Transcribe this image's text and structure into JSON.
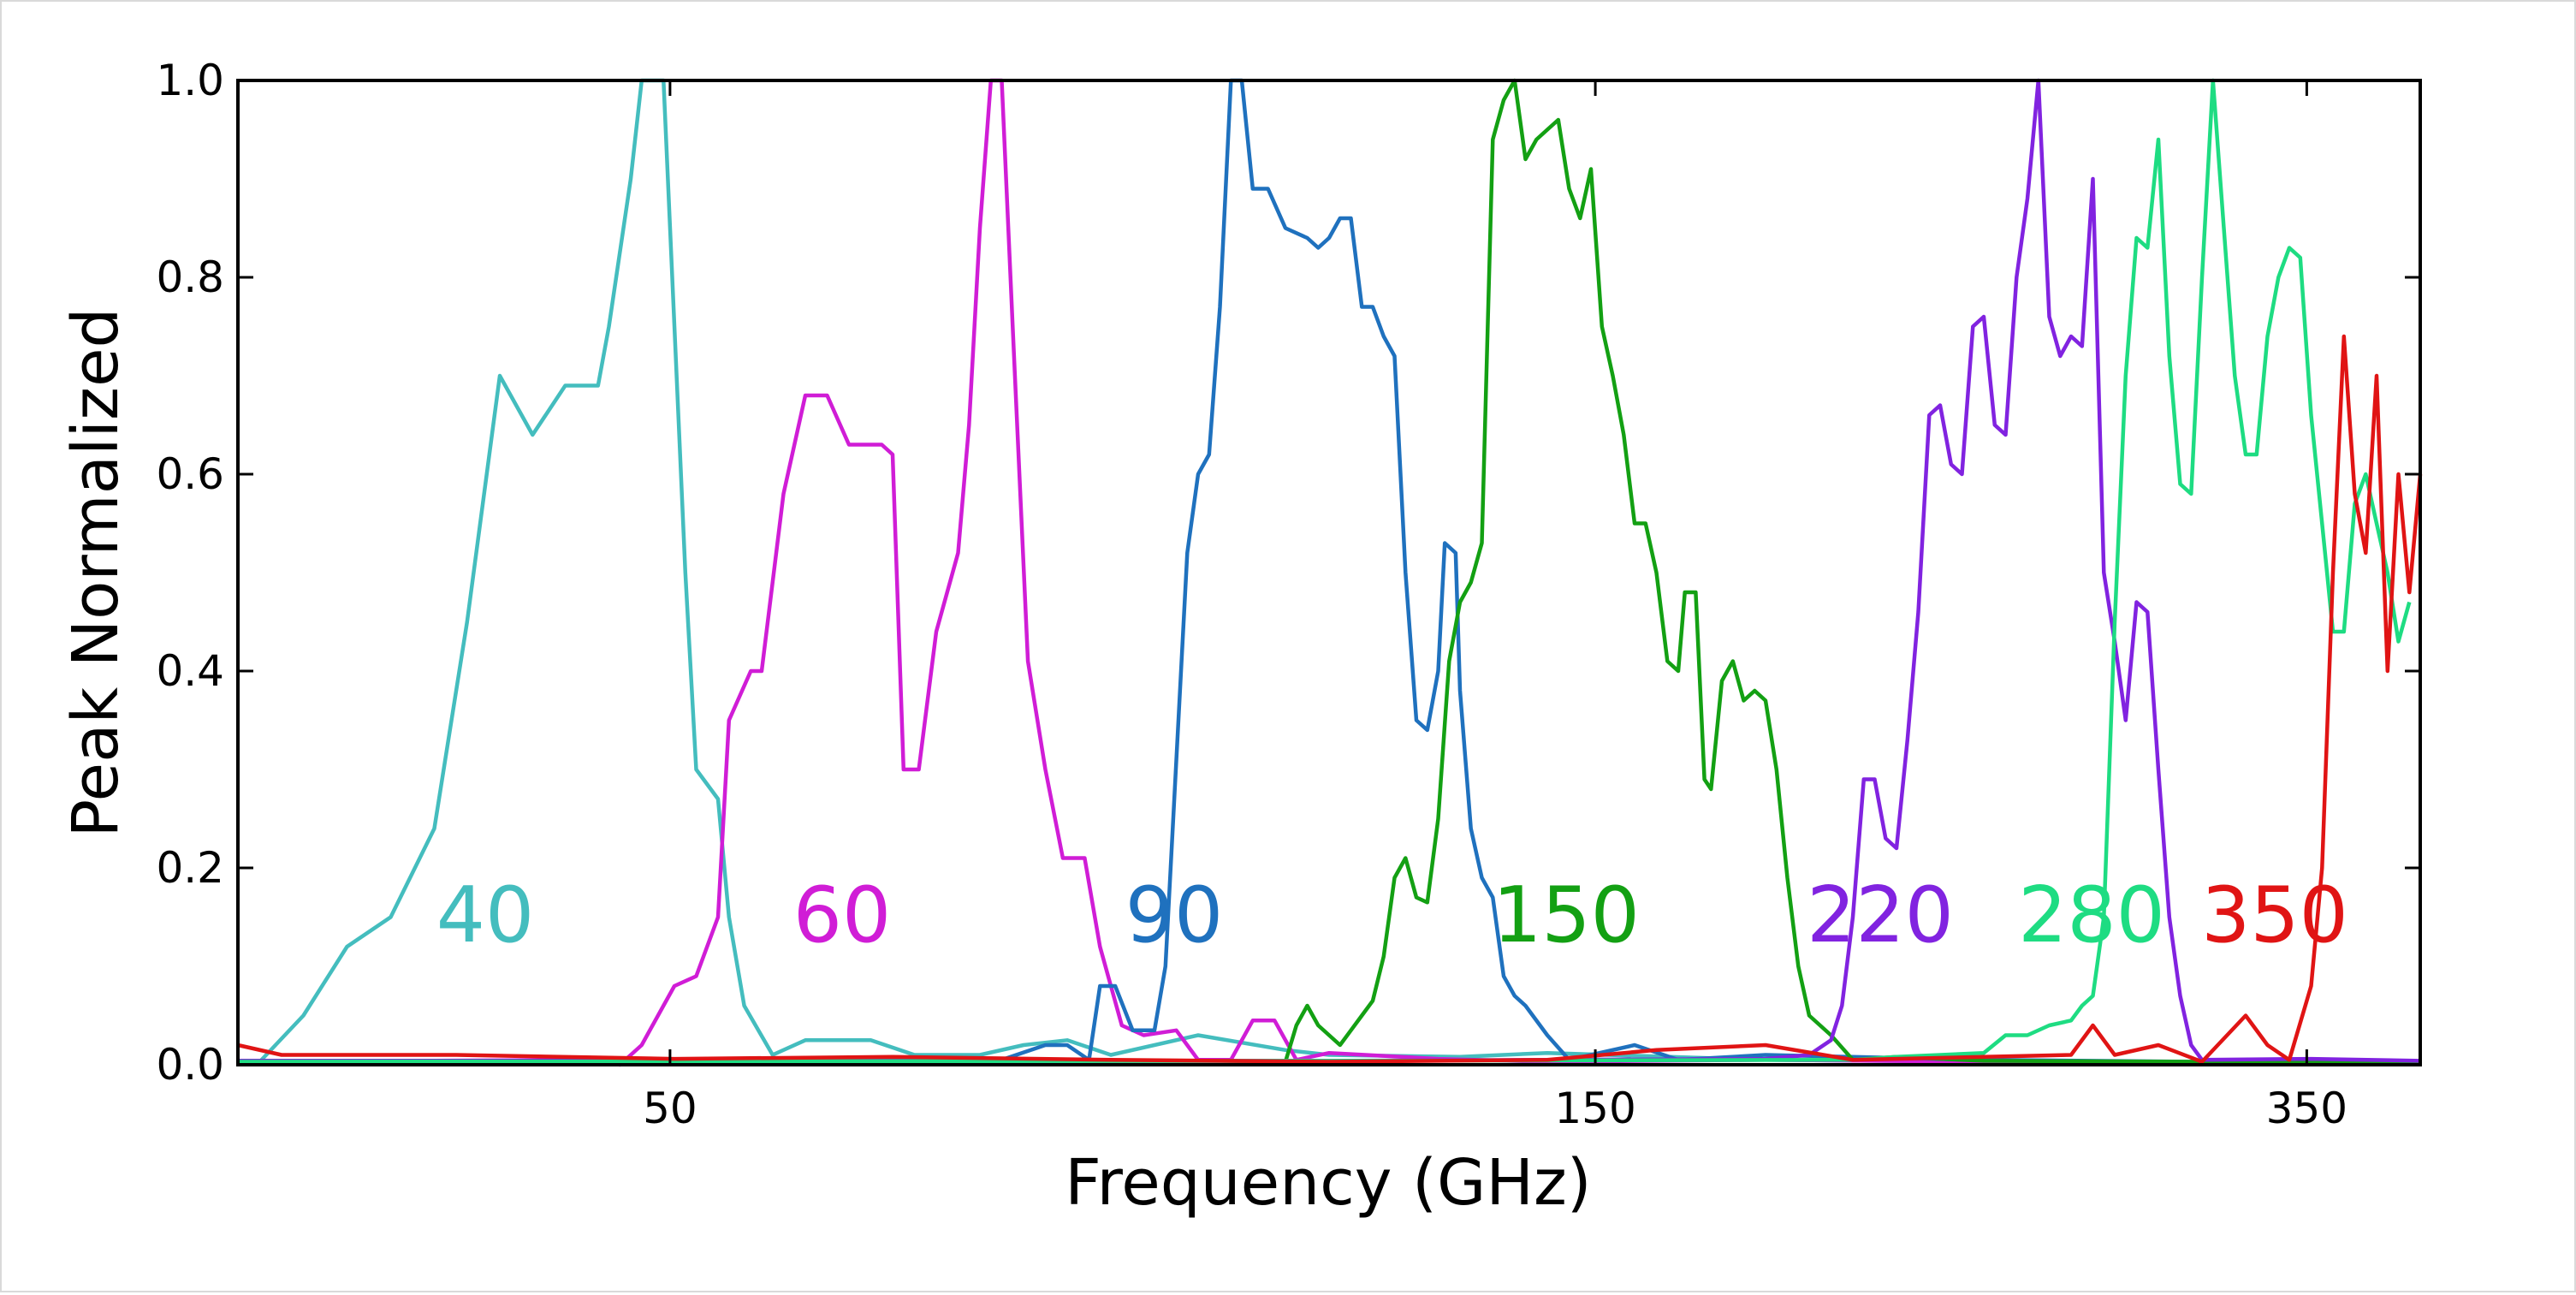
{
  "chart_data": {
    "type": "line",
    "xlabel": "Frequency (GHz)",
    "ylabel": "Peak Normalized",
    "ylim": [
      0,
      1.0
    ],
    "y_ticks": [
      "0.0",
      "0.2",
      "0.4",
      "0.6",
      "0.8",
      "1.0"
    ],
    "y_tick_values": [
      0,
      0.2,
      0.4,
      0.6,
      0.8,
      1.0
    ],
    "x_ticks": [
      "50",
      "150",
      "350"
    ],
    "grid": false,
    "legend": "none",
    "series": [
      {
        "name": "40",
        "color": "#44bdbe",
        "points": [
          [
            0.01,
            0.003
          ],
          [
            0.03,
            0.05
          ],
          [
            0.05,
            0.12
          ],
          [
            0.07,
            0.15
          ],
          [
            0.09,
            0.24
          ],
          [
            0.105,
            0.45
          ],
          [
            0.12,
            0.7
          ],
          [
            0.135,
            0.64
          ],
          [
            0.15,
            0.69
          ],
          [
            0.165,
            0.69
          ],
          [
            0.17,
            0.75
          ],
          [
            0.18,
            0.9
          ],
          [
            0.185,
            1.0
          ],
          [
            0.195,
            1.0
          ],
          [
            0.205,
            0.5
          ],
          [
            0.21,
            0.3
          ],
          [
            0.22,
            0.27
          ],
          [
            0.225,
            0.15
          ],
          [
            0.232,
            0.06
          ],
          [
            0.245,
            0.01
          ],
          [
            0.26,
            0.025
          ],
          [
            0.29,
            0.025
          ],
          [
            0.31,
            0.01
          ],
          [
            0.34,
            0.01
          ],
          [
            0.36,
            0.02
          ],
          [
            0.38,
            0.025
          ],
          [
            0.4,
            0.01
          ],
          [
            0.44,
            0.03
          ],
          [
            0.48,
            0.015
          ],
          [
            0.5,
            0.01
          ],
          [
            0.56,
            0.008
          ],
          [
            0.6,
            0.012
          ],
          [
            0.7,
            0.005
          ],
          [
            0.8,
            0.003
          ],
          [
            0.9,
            0.002
          ],
          [
            1.0,
            0.002
          ]
        ]
      },
      {
        "name": "60",
        "color": "#d01dd6",
        "points": [
          [
            0.0,
            0.003
          ],
          [
            0.16,
            0.005
          ],
          [
            0.17,
            0.003
          ],
          [
            0.175,
            0.0
          ],
          [
            0.185,
            0.02
          ],
          [
            0.19,
            0.04
          ],
          [
            0.2,
            0.08
          ],
          [
            0.21,
            0.09
          ],
          [
            0.22,
            0.15
          ],
          [
            0.225,
            0.35
          ],
          [
            0.235,
            0.4
          ],
          [
            0.24,
            0.4
          ],
          [
            0.25,
            0.58
          ],
          [
            0.26,
            0.68
          ],
          [
            0.27,
            0.68
          ],
          [
            0.28,
            0.63
          ],
          [
            0.295,
            0.63
          ],
          [
            0.3,
            0.62
          ],
          [
            0.305,
            0.3
          ],
          [
            0.312,
            0.3
          ],
          [
            0.32,
            0.44
          ],
          [
            0.33,
            0.52
          ],
          [
            0.335,
            0.65
          ],
          [
            0.34,
            0.85
          ],
          [
            0.345,
            1.0
          ],
          [
            0.35,
            1.0
          ],
          [
            0.355,
            0.75
          ],
          [
            0.362,
            0.41
          ],
          [
            0.37,
            0.3
          ],
          [
            0.378,
            0.21
          ],
          [
            0.388,
            0.21
          ],
          [
            0.395,
            0.12
          ],
          [
            0.405,
            0.04
          ],
          [
            0.415,
            0.03
          ],
          [
            0.43,
            0.035
          ],
          [
            0.44,
            0.005
          ],
          [
            0.455,
            0.005
          ],
          [
            0.465,
            0.045
          ],
          [
            0.475,
            0.045
          ],
          [
            0.485,
            0.005
          ],
          [
            0.5,
            0.012
          ],
          [
            0.55,
            0.006
          ],
          [
            0.6,
            0.003
          ],
          [
            0.7,
            0.005
          ],
          [
            0.8,
            0.003
          ],
          [
            0.9,
            0.002
          ],
          [
            1.0,
            0.003
          ]
        ]
      },
      {
        "name": "90",
        "color": "#1f71be",
        "points": [
          [
            0.0,
            0.002
          ],
          [
            0.2,
            0.003
          ],
          [
            0.34,
            0.004
          ],
          [
            0.35,
            0.005
          ],
          [
            0.37,
            0.02
          ],
          [
            0.38,
            0.02
          ],
          [
            0.39,
            0.005
          ],
          [
            0.395,
            0.08
          ],
          [
            0.402,
            0.08
          ],
          [
            0.41,
            0.035
          ],
          [
            0.42,
            0.035
          ],
          [
            0.425,
            0.1
          ],
          [
            0.435,
            0.52
          ],
          [
            0.44,
            0.6
          ],
          [
            0.445,
            0.62
          ],
          [
            0.45,
            0.77
          ],
          [
            0.455,
            1.0
          ],
          [
            0.46,
            1.0
          ],
          [
            0.465,
            0.89
          ],
          [
            0.472,
            0.89
          ],
          [
            0.48,
            0.85
          ],
          [
            0.49,
            0.84
          ],
          [
            0.495,
            0.83
          ],
          [
            0.5,
            0.84
          ],
          [
            0.505,
            0.86
          ],
          [
            0.51,
            0.86
          ],
          [
            0.515,
            0.77
          ],
          [
            0.52,
            0.77
          ],
          [
            0.525,
            0.74
          ],
          [
            0.53,
            0.72
          ],
          [
            0.535,
            0.5
          ],
          [
            0.54,
            0.35
          ],
          [
            0.545,
            0.34
          ],
          [
            0.55,
            0.4
          ],
          [
            0.553,
            0.53
          ],
          [
            0.558,
            0.52
          ],
          [
            0.56,
            0.38
          ],
          [
            0.565,
            0.24
          ],
          [
            0.57,
            0.19
          ],
          [
            0.575,
            0.17
          ],
          [
            0.58,
            0.09
          ],
          [
            0.585,
            0.07
          ],
          [
            0.59,
            0.06
          ],
          [
            0.6,
            0.03
          ],
          [
            0.61,
            0.005
          ],
          [
            0.62,
            0.01
          ],
          [
            0.64,
            0.02
          ],
          [
            0.66,
            0.005
          ],
          [
            0.7,
            0.01
          ],
          [
            0.8,
            0.005
          ],
          [
            0.9,
            0.003
          ],
          [
            1.0,
            0.003
          ]
        ]
      },
      {
        "name": "150",
        "color": "#13a013",
        "points": [
          [
            0.0,
            0.004
          ],
          [
            0.45,
            0.004
          ],
          [
            0.48,
            0.003
          ],
          [
            0.485,
            0.04
          ],
          [
            0.49,
            0.06
          ],
          [
            0.495,
            0.04
          ],
          [
            0.505,
            0.02
          ],
          [
            0.51,
            0.035
          ],
          [
            0.515,
            0.05
          ],
          [
            0.52,
            0.065
          ],
          [
            0.525,
            0.11
          ],
          [
            0.53,
            0.19
          ],
          [
            0.535,
            0.21
          ],
          [
            0.54,
            0.17
          ],
          [
            0.545,
            0.165
          ],
          [
            0.55,
            0.25
          ],
          [
            0.555,
            0.41
          ],
          [
            0.56,
            0.47
          ],
          [
            0.565,
            0.49
          ],
          [
            0.57,
            0.53
          ],
          [
            0.575,
            0.94
          ],
          [
            0.58,
            0.98
          ],
          [
            0.585,
            1.0
          ],
          [
            0.59,
            0.92
          ],
          [
            0.595,
            0.94
          ],
          [
            0.6,
            0.95
          ],
          [
            0.605,
            0.96
          ],
          [
            0.61,
            0.89
          ],
          [
            0.615,
            0.86
          ],
          [
            0.62,
            0.91
          ],
          [
            0.625,
            0.75
          ],
          [
            0.63,
            0.7
          ],
          [
            0.635,
            0.64
          ],
          [
            0.64,
            0.55
          ],
          [
            0.645,
            0.55
          ],
          [
            0.65,
            0.5
          ],
          [
            0.655,
            0.41
          ],
          [
            0.66,
            0.4
          ],
          [
            0.663,
            0.48
          ],
          [
            0.668,
            0.48
          ],
          [
            0.672,
            0.29
          ],
          [
            0.675,
            0.28
          ],
          [
            0.68,
            0.39
          ],
          [
            0.685,
            0.41
          ],
          [
            0.69,
            0.37
          ],
          [
            0.695,
            0.38
          ],
          [
            0.7,
            0.37
          ],
          [
            0.705,
            0.3
          ],
          [
            0.71,
            0.19
          ],
          [
            0.715,
            0.1
          ],
          [
            0.72,
            0.05
          ],
          [
            0.73,
            0.03
          ],
          [
            0.74,
            0.005
          ],
          [
            0.76,
            0.008
          ],
          [
            0.8,
            0.004
          ],
          [
            0.9,
            0.003
          ],
          [
            1.0,
            0.003
          ]
        ]
      },
      {
        "name": "220",
        "color": "#8123e0",
        "points": [
          [
            0.0,
            0.004
          ],
          [
            0.5,
            0.004
          ],
          [
            0.7,
            0.006
          ],
          [
            0.72,
            0.01
          ],
          [
            0.73,
            0.025
          ],
          [
            0.735,
            0.06
          ],
          [
            0.74,
            0.15
          ],
          [
            0.745,
            0.29
          ],
          [
            0.75,
            0.29
          ],
          [
            0.755,
            0.23
          ],
          [
            0.76,
            0.22
          ],
          [
            0.765,
            0.33
          ],
          [
            0.77,
            0.46
          ],
          [
            0.775,
            0.66
          ],
          [
            0.78,
            0.67
          ],
          [
            0.785,
            0.61
          ],
          [
            0.79,
            0.6
          ],
          [
            0.795,
            0.75
          ],
          [
            0.8,
            0.76
          ],
          [
            0.805,
            0.65
          ],
          [
            0.81,
            0.64
          ],
          [
            0.815,
            0.8
          ],
          [
            0.82,
            0.88
          ],
          [
            0.825,
            1.0
          ],
          [
            0.83,
            0.76
          ],
          [
            0.835,
            0.72
          ],
          [
            0.84,
            0.74
          ],
          [
            0.845,
            0.73
          ],
          [
            0.85,
            0.9
          ],
          [
            0.855,
            0.5
          ],
          [
            0.86,
            0.43
          ],
          [
            0.865,
            0.35
          ],
          [
            0.87,
            0.47
          ],
          [
            0.875,
            0.46
          ],
          [
            0.88,
            0.3
          ],
          [
            0.885,
            0.15
          ],
          [
            0.89,
            0.07
          ],
          [
            0.895,
            0.02
          ],
          [
            0.9,
            0.005
          ],
          [
            0.95,
            0.006
          ],
          [
            1.0,
            0.004
          ]
        ]
      },
      {
        "name": "280",
        "color": "#1edc82",
        "points": [
          [
            0.0,
            0.003
          ],
          [
            0.5,
            0.004
          ],
          [
            0.74,
            0.005
          ],
          [
            0.76,
            0.008
          ],
          [
            0.8,
            0.012
          ],
          [
            0.81,
            0.03
          ],
          [
            0.82,
            0.03
          ],
          [
            0.83,
            0.04
          ],
          [
            0.84,
            0.045
          ],
          [
            0.845,
            0.06
          ],
          [
            0.85,
            0.07
          ],
          [
            0.855,
            0.15
          ],
          [
            0.86,
            0.45
          ],
          [
            0.865,
            0.7
          ],
          [
            0.87,
            0.84
          ],
          [
            0.875,
            0.83
          ],
          [
            0.88,
            0.94
          ],
          [
            0.885,
            0.72
          ],
          [
            0.89,
            0.59
          ],
          [
            0.895,
            0.58
          ],
          [
            0.9,
            0.8
          ],
          [
            0.905,
            1.0
          ],
          [
            0.91,
            0.85
          ],
          [
            0.915,
            0.7
          ],
          [
            0.92,
            0.62
          ],
          [
            0.925,
            0.62
          ],
          [
            0.93,
            0.74
          ],
          [
            0.935,
            0.8
          ],
          [
            0.94,
            0.83
          ],
          [
            0.945,
            0.82
          ],
          [
            0.95,
            0.66
          ],
          [
            0.955,
            0.55
          ],
          [
            0.96,
            0.44
          ],
          [
            0.965,
            0.44
          ],
          [
            0.97,
            0.57
          ],
          [
            0.975,
            0.6
          ],
          [
            0.98,
            0.55
          ],
          [
            0.985,
            0.5
          ],
          [
            0.99,
            0.43
          ],
          [
            0.995,
            0.47
          ]
        ]
      },
      {
        "name": "350",
        "color": "#e01414",
        "points": [
          [
            0.0,
            0.02
          ],
          [
            0.02,
            0.01
          ],
          [
            0.1,
            0.01
          ],
          [
            0.2,
            0.006
          ],
          [
            0.3,
            0.008
          ],
          [
            0.4,
            0.005
          ],
          [
            0.5,
            0.003
          ],
          [
            0.6,
            0.005
          ],
          [
            0.65,
            0.015
          ],
          [
            0.7,
            0.02
          ],
          [
            0.74,
            0.005
          ],
          [
            0.8,
            0.008
          ],
          [
            0.84,
            0.01
          ],
          [
            0.85,
            0.04
          ],
          [
            0.86,
            0.01
          ],
          [
            0.88,
            0.02
          ],
          [
            0.9,
            0.003
          ],
          [
            0.92,
            0.05
          ],
          [
            0.93,
            0.02
          ],
          [
            0.94,
            0.005
          ],
          [
            0.95,
            0.08
          ],
          [
            0.955,
            0.2
          ],
          [
            0.96,
            0.5
          ],
          [
            0.965,
            0.74
          ],
          [
            0.97,
            0.58
          ],
          [
            0.975,
            0.52
          ],
          [
            0.98,
            0.7
          ],
          [
            0.985,
            0.4
          ],
          [
            0.99,
            0.6
          ],
          [
            0.995,
            0.48
          ],
          [
            1.0,
            0.6
          ]
        ]
      }
    ],
    "band_labels": [
      {
        "text": "40",
        "color": "#44bdbe"
      },
      {
        "text": "60",
        "color": "#d01dd6"
      },
      {
        "text": "90",
        "color": "#1f71be"
      },
      {
        "text": "150",
        "color": "#13a013"
      },
      {
        "text": "220",
        "color": "#8123e0"
      },
      {
        "text": "280",
        "color": "#1edc82"
      },
      {
        "text": "350",
        "color": "#e01414"
      }
    ]
  }
}
